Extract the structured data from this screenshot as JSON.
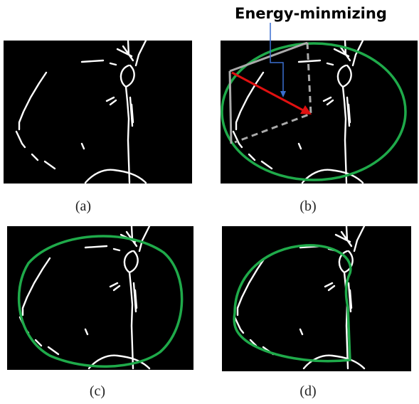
{
  "annotation": "Energy-minmizing",
  "panels": [
    {
      "label": "(a)"
    },
    {
      "label": "(b)"
    },
    {
      "label": "(c)"
    },
    {
      "label": "(d)"
    }
  ]
}
